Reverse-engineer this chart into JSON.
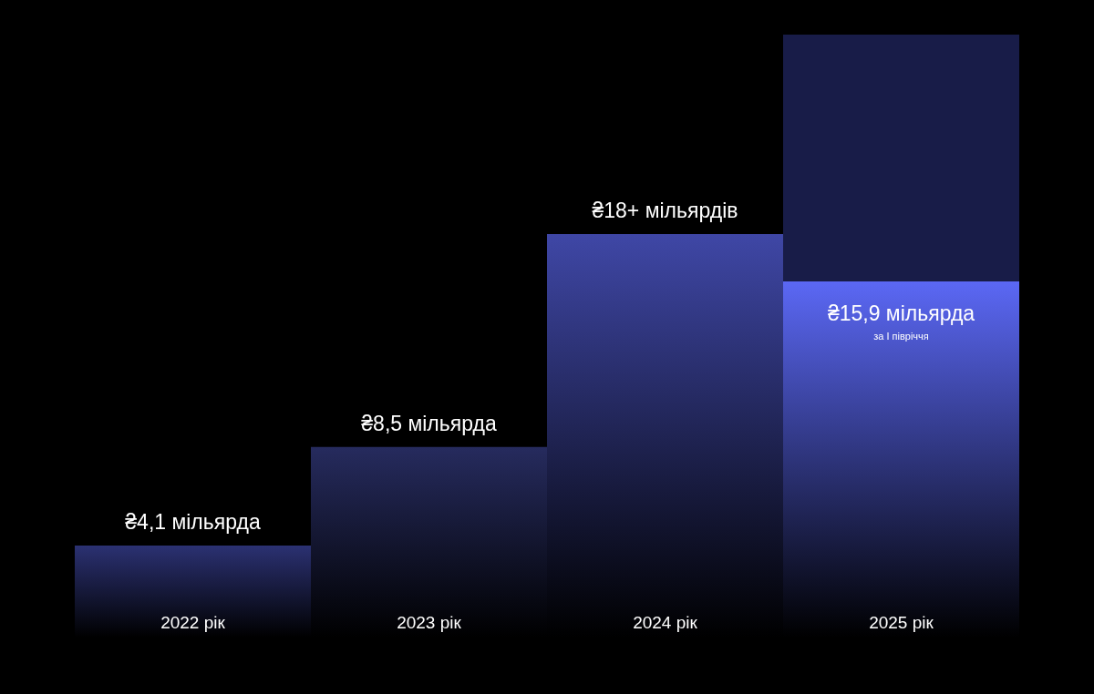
{
  "chart_data": {
    "type": "bar",
    "stacked": true,
    "tick_labels": "x",
    "categories": [
      "2022 рік",
      "2023 рік",
      "2024 рік",
      "2025 рік"
    ],
    "series": [
      {
        "colors": [
          "#2b3172",
          "#262b5e",
          "#3f47a6",
          "#5b68f5"
        ],
        "values": [
          4.1,
          8.5,
          18,
          15.9
        ],
        "value_labels": [
          "₴4,1 мільярда",
          "₴8,5 мільярда",
          "₴18+ мільярдів",
          "₴15,9 мільярда"
        ]
      },
      {
        "color": "#181c48",
        "values": [
          null,
          null,
          null,
          11
        ]
      }
    ],
    "annotations": [
      "за І півріччя"
    ]
  }
}
